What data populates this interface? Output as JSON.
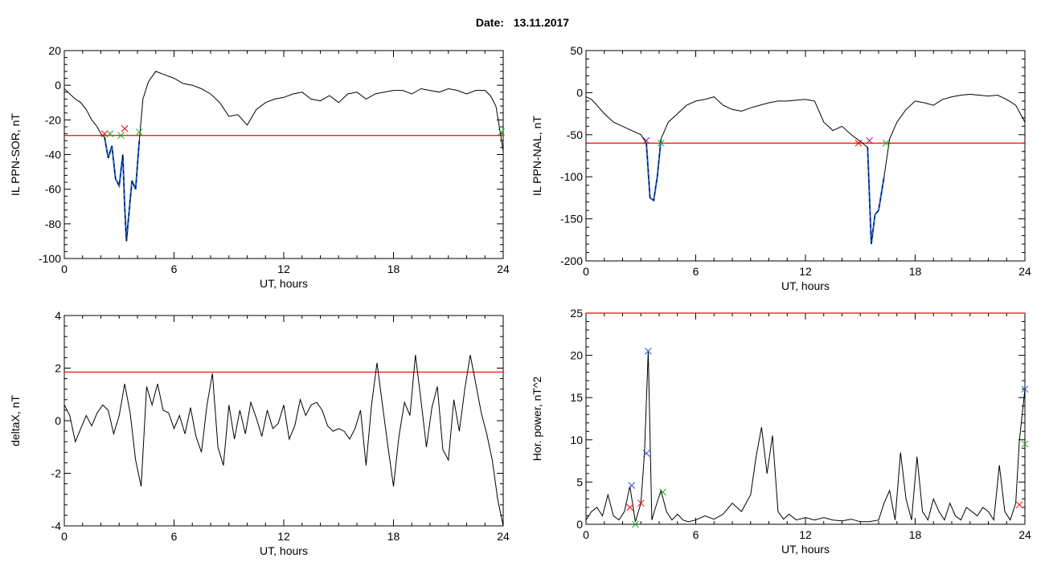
{
  "header": {
    "date_label": "Date:",
    "date_value": "13.11.2017"
  },
  "colors": {
    "threshold": "#ff0000",
    "trace": "#000000",
    "highlight": "#1f5fd6",
    "marker_red": "#ff0000",
    "marker_green": "#22aa22",
    "marker_blue": "#2255dd",
    "marker_purple": "#aa2288"
  },
  "chart_data": [
    {
      "type": "line",
      "xlabel": "UT, hours",
      "ylabel": "IL PPN-SOR, nT",
      "xlim": [
        0,
        24
      ],
      "ylim": [
        -100,
        20
      ],
      "xticks": [
        0,
        6,
        12,
        18,
        24
      ],
      "yticks": [
        -100,
        -80,
        -60,
        -40,
        -20,
        0,
        20
      ],
      "threshold": -29,
      "series": [
        {
          "x": [
            0,
            0.3,
            0.6,
            0.9,
            1.2,
            1.5,
            1.8,
            2.0,
            2.2,
            2.4,
            2.6,
            2.8,
            3.0,
            3.2,
            3.3,
            3.4,
            3.5,
            3.7,
            3.9,
            4.1,
            4.3,
            4.6,
            5.0,
            5.5,
            6,
            6.5,
            7,
            7.5,
            8,
            8.5,
            9,
            9.5,
            10,
            10.5,
            11,
            11.5,
            12,
            12.5,
            13,
            13.5,
            14,
            14.5,
            15,
            15.5,
            16,
            16.5,
            17,
            17.5,
            18,
            18.5,
            19,
            19.5,
            20,
            20.5,
            21,
            21.5,
            22,
            22.5,
            23,
            23.3,
            23.6,
            23.8,
            24
          ],
          "y": [
            -2,
            -5,
            -8,
            -10,
            -14,
            -20,
            -24,
            -28,
            -30,
            -42,
            -35,
            -54,
            -58,
            -40,
            -70,
            -90,
            -78,
            -55,
            -60,
            -32,
            -8,
            2,
            8,
            6,
            4,
            1,
            0,
            -2,
            -5,
            -10,
            -18,
            -17,
            -23,
            -14,
            -10,
            -8,
            -7,
            -5,
            -4,
            -8,
            -9,
            -6,
            -10,
            -5,
            -4,
            -8,
            -5,
            -4,
            -3,
            -3,
            -5,
            -2,
            -3,
            -4,
            -2,
            -3,
            -5,
            -3,
            -3,
            -6,
            -12,
            -25,
            -38
          ]
        }
      ],
      "highlight_ranges": [
        [
          2.2,
          4.2
        ]
      ],
      "markers": [
        {
          "x": 2.2,
          "y": -28,
          "symbol": "x",
          "color": "red"
        },
        {
          "x": 2.5,
          "y": -28,
          "symbol": "x",
          "color": "green"
        },
        {
          "x": 3.1,
          "y": -29,
          "symbol": "x",
          "color": "green"
        },
        {
          "x": 3.3,
          "y": -25,
          "symbol": "x",
          "color": "red"
        },
        {
          "x": 4.1,
          "y": -27,
          "symbol": "x",
          "color": "green"
        },
        {
          "x": 23.9,
          "y": -27,
          "symbol": "x",
          "color": "green"
        }
      ]
    },
    {
      "type": "line",
      "xlabel": "UT, hours",
      "ylabel": "IL PPN-NAL, nT",
      "xlim": [
        0,
        24
      ],
      "ylim": [
        -200,
        50
      ],
      "xticks": [
        0,
        6,
        12,
        18,
        24
      ],
      "yticks": [
        -200,
        -150,
        -100,
        -50,
        0,
        50
      ],
      "threshold": -60,
      "series": [
        {
          "x": [
            0,
            0.3,
            0.6,
            1.0,
            1.5,
            2.0,
            2.5,
            3.0,
            3.3,
            3.5,
            3.7,
            3.9,
            4.1,
            4.5,
            5,
            5.5,
            6,
            6.5,
            7,
            7.5,
            8,
            8.5,
            9,
            9.5,
            10,
            10.5,
            11,
            11.5,
            12,
            12.5,
            13,
            13.5,
            14,
            14.5,
            15,
            15.4,
            15.6,
            15.8,
            16.0,
            16.3,
            16.6,
            17,
            17.5,
            18,
            18.5,
            19,
            19.5,
            20,
            20.5,
            21,
            21.5,
            22,
            22.5,
            23,
            23.5,
            24
          ],
          "y": [
            -5,
            -8,
            -15,
            -25,
            -35,
            -40,
            -45,
            -50,
            -60,
            -125,
            -128,
            -100,
            -55,
            -35,
            -25,
            -15,
            -10,
            -8,
            -5,
            -15,
            -20,
            -22,
            -18,
            -15,
            -12,
            -10,
            -10,
            -9,
            -8,
            -10,
            -35,
            -45,
            -40,
            -50,
            -58,
            -65,
            -180,
            -145,
            -140,
            -100,
            -55,
            -35,
            -20,
            -10,
            -12,
            -15,
            -8,
            -5,
            -3,
            -2,
            -3,
            -4,
            -3,
            -8,
            -15,
            -35
          ]
        }
      ],
      "highlight_ranges": [
        [
          3.3,
          4.1
        ],
        [
          15.4,
          16.4
        ]
      ],
      "markers": [
        {
          "x": 3.3,
          "y": -57,
          "symbol": "x",
          "color": "purple"
        },
        {
          "x": 4.1,
          "y": -60,
          "symbol": "x",
          "color": "green"
        },
        {
          "x": 14.9,
          "y": -60,
          "symbol": "x",
          "color": "red"
        },
        {
          "x": 15.5,
          "y": -57,
          "symbol": "x",
          "color": "purple"
        },
        {
          "x": 16.4,
          "y": -60,
          "symbol": "x",
          "color": "green"
        }
      ]
    },
    {
      "type": "line",
      "xlabel": "UT, hours",
      "ylabel": "deltaX, nT",
      "xlim": [
        0,
        24
      ],
      "ylim": [
        -4,
        4
      ],
      "xticks": [
        0,
        6,
        12,
        18,
        24
      ],
      "yticks": [
        -4,
        -2,
        0,
        2,
        4
      ],
      "threshold": 1.85,
      "series": [
        {
          "x": [
            0,
            0.3,
            0.6,
            0.9,
            1.2,
            1.5,
            1.8,
            2.1,
            2.4,
            2.7,
            3.0,
            3.3,
            3.6,
            3.9,
            4.2,
            4.5,
            4.8,
            5.1,
            5.4,
            5.7,
            6,
            6.3,
            6.6,
            6.9,
            7.2,
            7.5,
            7.8,
            8.1,
            8.4,
            8.7,
            9.0,
            9.3,
            9.6,
            9.9,
            10.2,
            10.5,
            10.8,
            11.1,
            11.4,
            11.7,
            12,
            12.3,
            12.6,
            12.9,
            13.2,
            13.5,
            13.8,
            14.1,
            14.4,
            14.7,
            15,
            15.3,
            15.6,
            15.9,
            16.2,
            16.5,
            16.8,
            17.1,
            17.4,
            17.7,
            18.0,
            18.3,
            18.6,
            18.9,
            19.2,
            19.5,
            19.8,
            20.1,
            20.4,
            20.7,
            21.0,
            21.3,
            21.6,
            21.9,
            22.2,
            22.5,
            22.8,
            23.1,
            23.4,
            23.7,
            24
          ],
          "y": [
            0.6,
            0.2,
            -0.8,
            -0.3,
            0.2,
            -0.2,
            0.3,
            0.6,
            0.4,
            -0.5,
            0.2,
            1.4,
            0.3,
            -1.5,
            -2.5,
            1.3,
            0.6,
            1.4,
            0.4,
            0.3,
            -0.3,
            0.2,
            -0.5,
            0.5,
            -0.6,
            -1.2,
            0.6,
            1.8,
            -1.0,
            -1.7,
            0.6,
            -0.7,
            0.4,
            -0.5,
            0.7,
            0.1,
            -0.6,
            0.4,
            -0.3,
            -0.1,
            0.6,
            -0.7,
            -0.2,
            0.8,
            0.2,
            0.6,
            0.7,
            0.4,
            -0.2,
            -0.4,
            -0.3,
            -0.4,
            -0.7,
            -0.3,
            0.4,
            -1.7,
            0.6,
            2.2,
            0.6,
            -1.0,
            -2.5,
            -0.6,
            0.7,
            0.2,
            2.5,
            0.8,
            -1.0,
            0.5,
            1.3,
            -1.1,
            -1.5,
            0.8,
            -0.4,
            1.2,
            2.5,
            1.4,
            0.3,
            -0.5,
            -1.5,
            -3.0,
            -4.0
          ]
        }
      ]
    },
    {
      "type": "line",
      "xlabel": "UT, hours",
      "ylabel": "Hor. power, nT^2",
      "xlim": [
        0,
        24
      ],
      "ylim": [
        0,
        25
      ],
      "xticks": [
        0,
        6,
        12,
        18,
        24
      ],
      "yticks": [
        0,
        5,
        10,
        15,
        20,
        25
      ],
      "threshold": 25,
      "series": [
        {
          "x": [
            0,
            0.3,
            0.6,
            0.9,
            1.2,
            1.5,
            1.8,
            2.1,
            2.4,
            2.7,
            3.0,
            3.2,
            3.4,
            3.6,
            3.8,
            4.1,
            4.4,
            4.7,
            5.0,
            5.3,
            5.6,
            6,
            6.5,
            7,
            7.5,
            8,
            8.5,
            9,
            9.3,
            9.6,
            9.9,
            10.2,
            10.5,
            10.8,
            11.1,
            11.5,
            12,
            12.5,
            13,
            13.5,
            14,
            14.5,
            15,
            15.5,
            16,
            16.3,
            16.6,
            16.9,
            17.2,
            17.5,
            17.8,
            18.1,
            18.4,
            18.7,
            19.0,
            19.3,
            19.6,
            19.9,
            20.2,
            20.5,
            20.8,
            21.1,
            21.4,
            21.7,
            22.0,
            22.3,
            22.6,
            22.9,
            23.2,
            23.5,
            23.7,
            24
          ],
          "y": [
            0.5,
            1.5,
            2.0,
            1.0,
            3.5,
            1.0,
            0.5,
            1.5,
            4.5,
            0.3,
            2.5,
            8.5,
            20.5,
            0.5,
            2.0,
            4.0,
            1.5,
            0.5,
            1.2,
            0.5,
            0.3,
            0.5,
            1.0,
            0.6,
            1.2,
            2.5,
            1.5,
            3.5,
            8.0,
            11.5,
            6.0,
            10.5,
            1.5,
            0.6,
            1.2,
            0.5,
            0.8,
            0.5,
            0.8,
            0.5,
            0.4,
            0.6,
            0.3,
            0.3,
            0.5,
            2.5,
            4.0,
            0.5,
            8.5,
            3.0,
            0.5,
            8.0,
            1.5,
            0.5,
            3.0,
            1.5,
            0.5,
            2.5,
            1.0,
            0.5,
            2.0,
            1.5,
            1.0,
            2.0,
            1.5,
            0.5,
            7.0,
            1.5,
            0.5,
            2.5,
            10.0,
            16.0
          ]
        }
      ],
      "markers": [
        {
          "x": 2.4,
          "y": 2.0,
          "symbol": "x",
          "color": "red"
        },
        {
          "x": 2.5,
          "y": 4.6,
          "symbol": "x",
          "color": "blue"
        },
        {
          "x": 2.7,
          "y": 0.0,
          "symbol": "x",
          "color": "green"
        },
        {
          "x": 3.0,
          "y": 2.5,
          "symbol": "x",
          "color": "red"
        },
        {
          "x": 3.3,
          "y": 8.4,
          "symbol": "x",
          "color": "blue"
        },
        {
          "x": 3.4,
          "y": 20.5,
          "symbol": "x",
          "color": "blue"
        },
        {
          "x": 4.2,
          "y": 3.8,
          "symbol": "x",
          "color": "green"
        },
        {
          "x": 23.7,
          "y": 2.3,
          "symbol": "x",
          "color": "red"
        },
        {
          "x": 24.0,
          "y": 9.5,
          "symbol": "x",
          "color": "green"
        },
        {
          "x": 24.0,
          "y": 16.0,
          "symbol": "x",
          "color": "blue"
        }
      ]
    }
  ]
}
